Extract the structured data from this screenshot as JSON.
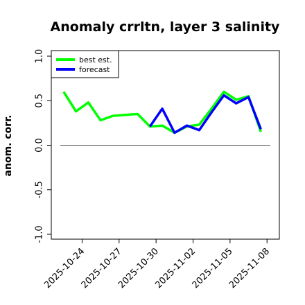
{
  "chart_data": {
    "type": "line",
    "title": "Anomaly crrltn, layer 3 salinity",
    "ylabel": "anom. corr.",
    "xlabel": "",
    "ylim": [
      -1.0,
      1.0
    ],
    "yticks": [
      -1.0,
      -0.5,
      0.0,
      0.5,
      1.0
    ],
    "ytick_labels": [
      "-1.0",
      "-0.5",
      "0.0",
      "0.5",
      "1.0"
    ],
    "xrange": [
      "2025-10-21T12:00",
      "2025-11-09"
    ],
    "xticks": [
      "2025-10-24",
      "2025-10-27",
      "2025-10-30",
      "2025-11-02",
      "2025-11-05",
      "2025-11-08"
    ],
    "xtick_colors": [
      "#000000",
      "#000000",
      "#228b22",
      "#000000",
      "#000000",
      "#000000"
    ],
    "reference_line": 0.0,
    "legend": {
      "placement": "top-left",
      "entries": [
        "best est.",
        "forecast"
      ]
    },
    "x": [
      "2025-10-22T12:00",
      "2025-10-23T12:00",
      "2025-10-24T12:00",
      "2025-10-25T12:00",
      "2025-10-26T12:00",
      "2025-10-27T12:00",
      "2025-10-28T12:00",
      "2025-10-29T12:00",
      "2025-10-30T12:00",
      "2025-10-31T12:00",
      "2025-11-01T12:00",
      "2025-11-02T12:00",
      "2025-11-03T12:00",
      "2025-11-04T12:00",
      "2025-11-05T12:00",
      "2025-11-06T12:00",
      "2025-11-07T12:00",
      "2025-11-08T12:00"
    ],
    "series": [
      {
        "name": "best est.",
        "color": "#00ff00",
        "values": [
          0.6,
          0.38,
          0.48,
          0.28,
          0.33,
          0.34,
          0.35,
          0.21,
          0.22,
          0.14,
          0.21,
          0.23,
          0.41,
          0.6,
          0.51,
          0.55,
          0.15,
          null
        ]
      },
      {
        "name": "forecast",
        "color": "#0000ff",
        "values": [
          null,
          null,
          null,
          null,
          null,
          null,
          null,
          0.21,
          0.41,
          0.14,
          0.22,
          0.17,
          0.37,
          0.56,
          0.47,
          0.54,
          0.18,
          null
        ]
      }
    ]
  }
}
